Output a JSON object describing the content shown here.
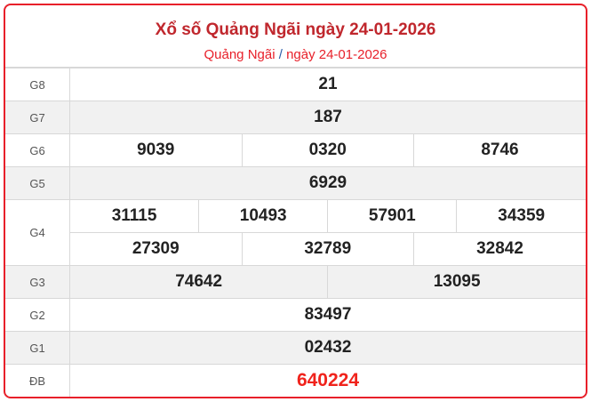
{
  "header": {
    "title": "Xổ số Quảng Ngãi ngày 24-01-2026",
    "breadcrumb": {
      "province": "Quảng Ngãi",
      "separator": "/",
      "date": "ngày 24-01-2026"
    }
  },
  "colors": {
    "accent": "#e8202a",
    "title": "#c0272d",
    "special": "#f0231c"
  },
  "prizes": {
    "g8": {
      "label": "G8",
      "values": [
        "21"
      ]
    },
    "g7": {
      "label": "G7",
      "values": [
        "187"
      ]
    },
    "g6": {
      "label": "G6",
      "values": [
        "9039",
        "0320",
        "8746"
      ]
    },
    "g5": {
      "label": "G5",
      "values": [
        "6929"
      ]
    },
    "g4": {
      "label": "G4",
      "values": [
        "31115",
        "10493",
        "57901",
        "34359",
        "27309",
        "32789",
        "32842"
      ]
    },
    "g3": {
      "label": "G3",
      "values": [
        "74642",
        "13095"
      ]
    },
    "g2": {
      "label": "G2",
      "values": [
        "83497"
      ]
    },
    "g1": {
      "label": "G1",
      "values": [
        "02432"
      ]
    },
    "db": {
      "label": "ĐB",
      "values": [
        "640224"
      ]
    }
  }
}
